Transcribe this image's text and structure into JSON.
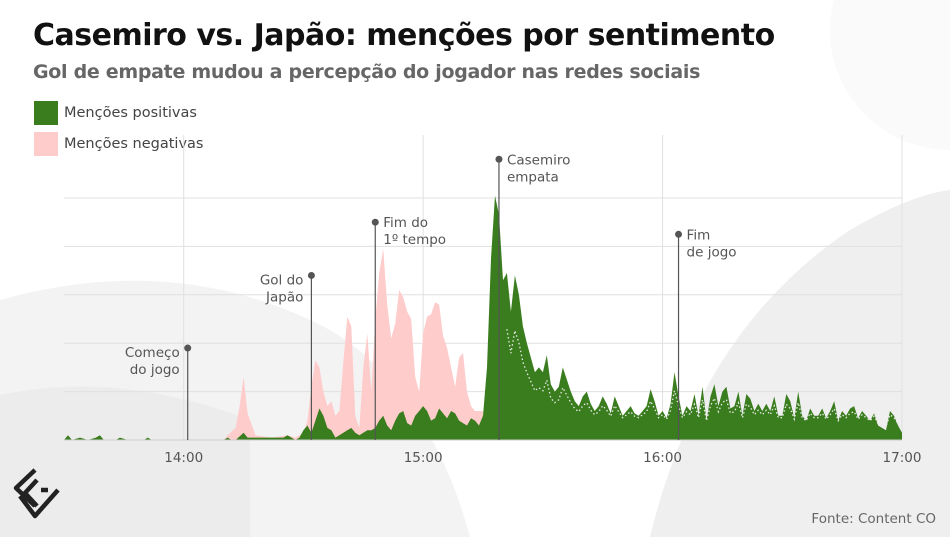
{
  "header": {
    "title": "Casemiro vs. Japão: menções por sentimento",
    "subtitle": "Gol de empate mudou a percepção do jogador nas redes sociais"
  },
  "legend": {
    "items": [
      {
        "label": "Menções positivas",
        "color": "#3a7d1e"
      },
      {
        "label": "Menções negativas",
        "color": "#ffcccc"
      }
    ]
  },
  "colors": {
    "positive": "#3a7d1e",
    "negative": "#ffcccc",
    "grid": "#e0e0e0",
    "annotation": "#555555",
    "dotted_line": "#e8e8e8"
  },
  "footer": {
    "source": "Fonte: Content CO"
  },
  "logo": {
    "icon": "content-co-logo-icon"
  },
  "chart_data": {
    "type": "area",
    "title": "Casemiro vs. Japão: menções por sentimento",
    "subtitle": "Gol de empate mudou a percepção do jogador nas redes sociais",
    "xlabel": "",
    "ylabel": "",
    "x_unit": "minutes since 00:00",
    "xlim": [
      810,
      1020
    ],
    "ylim": [
      0,
      100
    ],
    "y_axis_labels": false,
    "grid": true,
    "legend_placement": "top-left",
    "x_ticks": [
      {
        "value": 840,
        "label": "14:00"
      },
      {
        "value": 900,
        "label": "15:00"
      },
      {
        "value": 960,
        "label": "16:00"
      },
      {
        "value": 1020,
        "label": "17:00"
      }
    ],
    "series": [
      {
        "name": "Menções negativas",
        "color": "#ffcccc",
        "points": [
          [
            810,
            0
          ],
          [
            840,
            0
          ],
          [
            850,
            0
          ],
          [
            851,
            2
          ],
          [
            853,
            5
          ],
          [
            854,
            14
          ],
          [
            855,
            26
          ],
          [
            856,
            11
          ],
          [
            858,
            2
          ],
          [
            862,
            1
          ],
          [
            866,
            2
          ],
          [
            868,
            1
          ],
          [
            870,
            3
          ],
          [
            871,
            8
          ],
          [
            872,
            22
          ],
          [
            873,
            33
          ],
          [
            874,
            30
          ],
          [
            875,
            20
          ],
          [
            876,
            14
          ],
          [
            877,
            16
          ],
          [
            878,
            10
          ],
          [
            879,
            12
          ],
          [
            880,
            32
          ],
          [
            881,
            51
          ],
          [
            882,
            47
          ],
          [
            883,
            10
          ],
          [
            884,
            5
          ],
          [
            885,
            30
          ],
          [
            886,
            44
          ],
          [
            887,
            20
          ],
          [
            888,
            50
          ],
          [
            889,
            69
          ],
          [
            890,
            79
          ],
          [
            891,
            56
          ],
          [
            892,
            42
          ],
          [
            893,
            48
          ],
          [
            894,
            62
          ],
          [
            895,
            59
          ],
          [
            896,
            53
          ],
          [
            897,
            50
          ],
          [
            898,
            26
          ],
          [
            899,
            20
          ],
          [
            900,
            44
          ],
          [
            901,
            51
          ],
          [
            902,
            52
          ],
          [
            903,
            57
          ],
          [
            904,
            56
          ],
          [
            905,
            43
          ],
          [
            906,
            38
          ],
          [
            907,
            30
          ],
          [
            908,
            22
          ],
          [
            909,
            34
          ],
          [
            910,
            36
          ],
          [
            911,
            20
          ],
          [
            912,
            14
          ],
          [
            913,
            12
          ],
          [
            914,
            12
          ],
          [
            915,
            12
          ]
        ]
      },
      {
        "name": "Menções positivas",
        "color": "#3a7d1e",
        "points": [
          [
            810,
            0
          ],
          [
            811,
            2
          ],
          [
            812,
            0
          ],
          [
            814,
            1
          ],
          [
            816,
            0
          ],
          [
            818,
            1
          ],
          [
            819,
            2
          ],
          [
            820,
            0
          ],
          [
            822,
            0
          ],
          [
            823,
            0
          ],
          [
            824,
            1
          ],
          [
            826,
            0
          ],
          [
            830,
            0
          ],
          [
            831,
            1
          ],
          [
            832,
            0
          ],
          [
            836,
            0
          ],
          [
            840,
            0
          ],
          [
            845,
            0
          ],
          [
            850,
            0
          ],
          [
            851,
            1
          ],
          [
            852,
            0
          ],
          [
            853,
            0
          ],
          [
            855,
            3
          ],
          [
            856,
            1
          ],
          [
            858,
            1
          ],
          [
            860,
            1
          ],
          [
            862,
            1
          ],
          [
            865,
            1
          ],
          [
            866,
            2
          ],
          [
            868,
            0
          ],
          [
            869,
            1
          ],
          [
            870,
            4
          ],
          [
            871,
            6
          ],
          [
            872,
            3
          ],
          [
            873,
            8
          ],
          [
            874,
            13
          ],
          [
            875,
            10
          ],
          [
            876,
            5
          ],
          [
            877,
            4
          ],
          [
            878,
            1
          ],
          [
            879,
            2
          ],
          [
            880,
            3
          ],
          [
            881,
            4
          ],
          [
            882,
            5
          ],
          [
            883,
            3
          ],
          [
            884,
            2
          ],
          [
            885,
            3
          ],
          [
            886,
            4
          ],
          [
            887,
            4
          ],
          [
            888,
            5
          ],
          [
            889,
            8
          ],
          [
            890,
            10
          ],
          [
            891,
            6
          ],
          [
            892,
            4
          ],
          [
            893,
            8
          ],
          [
            894,
            11
          ],
          [
            895,
            12
          ],
          [
            896,
            7
          ],
          [
            897,
            6
          ],
          [
            898,
            10
          ],
          [
            899,
            12
          ],
          [
            900,
            14
          ],
          [
            901,
            12
          ],
          [
            902,
            8
          ],
          [
            903,
            9
          ],
          [
            904,
            13
          ],
          [
            905,
            11
          ],
          [
            906,
            9
          ],
          [
            907,
            12
          ],
          [
            908,
            11
          ],
          [
            909,
            8
          ],
          [
            910,
            7
          ],
          [
            911,
            6
          ],
          [
            912,
            9
          ],
          [
            913,
            8
          ],
          [
            914,
            6
          ],
          [
            915,
            10
          ],
          [
            916,
            30
          ],
          [
            917,
            75
          ],
          [
            918,
            101
          ],
          [
            919,
            93
          ],
          [
            920,
            66
          ],
          [
            921,
            69
          ],
          [
            922,
            53
          ],
          [
            923,
            68
          ],
          [
            924,
            60
          ],
          [
            925,
            47
          ],
          [
            926,
            40
          ],
          [
            927,
            34
          ],
          [
            928,
            28
          ],
          [
            929,
            30
          ],
          [
            930,
            28
          ],
          [
            931,
            35
          ],
          [
            932,
            23
          ],
          [
            933,
            20
          ],
          [
            934,
            22
          ],
          [
            935,
            30
          ],
          [
            936,
            25
          ],
          [
            937,
            20
          ],
          [
            938,
            16
          ],
          [
            939,
            14
          ],
          [
            940,
            18
          ],
          [
            941,
            20
          ],
          [
            942,
            15
          ],
          [
            943,
            12
          ],
          [
            944,
            14
          ],
          [
            945,
            18
          ],
          [
            946,
            15
          ],
          [
            947,
            11
          ],
          [
            948,
            18
          ],
          [
            949,
            14
          ],
          [
            950,
            10
          ],
          [
            951,
            12
          ],
          [
            952,
            14
          ],
          [
            953,
            11
          ],
          [
            954,
            10
          ],
          [
            955,
            12
          ],
          [
            956,
            14
          ],
          [
            957,
            21
          ],
          [
            958,
            16
          ],
          [
            959,
            10
          ],
          [
            960,
            12
          ],
          [
            961,
            9
          ],
          [
            962,
            15
          ],
          [
            963,
            28
          ],
          [
            964,
            18
          ],
          [
            965,
            10
          ],
          [
            966,
            14
          ],
          [
            967,
            12
          ],
          [
            968,
            19
          ],
          [
            969,
            10
          ],
          [
            970,
            22
          ],
          [
            971,
            8
          ],
          [
            972,
            18
          ],
          [
            973,
            23
          ],
          [
            974,
            14
          ],
          [
            975,
            20
          ],
          [
            976,
            22
          ],
          [
            977,
            13
          ],
          [
            978,
            14
          ],
          [
            979,
            20
          ],
          [
            980,
            10
          ],
          [
            981,
            19
          ],
          [
            982,
            17
          ],
          [
            983,
            12
          ],
          [
            984,
            15
          ],
          [
            985,
            12
          ],
          [
            986,
            15
          ],
          [
            987,
            12
          ],
          [
            988,
            18
          ],
          [
            989,
            10
          ],
          [
            990,
            10
          ],
          [
            991,
            19
          ],
          [
            992,
            16
          ],
          [
            993,
            9
          ],
          [
            994,
            20
          ],
          [
            995,
            10
          ],
          [
            996,
            8
          ],
          [
            997,
            13
          ],
          [
            998,
            10
          ],
          [
            999,
            10
          ],
          [
            1000,
            13
          ],
          [
            1001,
            9
          ],
          [
            1002,
            12
          ],
          [
            1003,
            16
          ],
          [
            1004,
            8
          ],
          [
            1005,
            12
          ],
          [
            1006,
            10
          ],
          [
            1007,
            13
          ],
          [
            1008,
            14
          ],
          [
            1009,
            9
          ],
          [
            1010,
            12
          ],
          [
            1011,
            10
          ],
          [
            1012,
            8
          ],
          [
            1013,
            11
          ],
          [
            1014,
            6
          ],
          [
            1015,
            5
          ],
          [
            1016,
            4
          ],
          [
            1017,
            12
          ],
          [
            1018,
            10
          ],
          [
            1019,
            6
          ],
          [
            1020,
            3
          ]
        ]
      }
    ],
    "annotations": [
      {
        "time": 841,
        "label_lines": [
          "Começo",
          "do jogo"
        ],
        "anchor_value": 38,
        "label_side": "left"
      },
      {
        "time": 872,
        "label_lines": [
          "Gol do",
          "Japão"
        ],
        "anchor_value": 68,
        "label_side": "left"
      },
      {
        "time": 888,
        "label_lines": [
          "Fim do",
          "1º tempo"
        ],
        "anchor_value": 90,
        "label_side": "right"
      },
      {
        "time": 919,
        "label_lines": [
          "Casemiro",
          "empata"
        ],
        "anchor_value": 116,
        "label_side": "right"
      },
      {
        "time": 964,
        "label_lines": [
          "Fim",
          "de jogo"
        ],
        "anchor_value": 85,
        "label_side": "right"
      }
    ]
  }
}
